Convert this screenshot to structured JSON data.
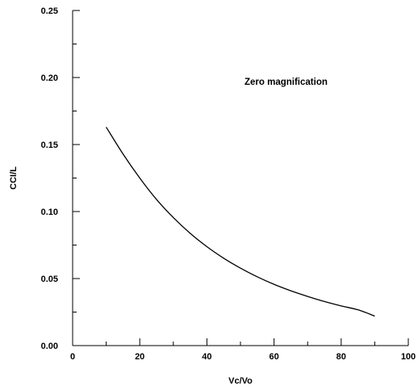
{
  "chart_data": {
    "type": "line",
    "xlabel": "Vc/Vo",
    "ylabel": "CCI/L",
    "annotation": "Zero magnification",
    "xlim": [
      0,
      100
    ],
    "ylim": [
      0,
      0.25
    ],
    "x_ticks": [
      {
        "value": 0,
        "label": "0"
      },
      {
        "value": 20,
        "label": "20"
      },
      {
        "value": 40,
        "label": "40"
      },
      {
        "value": 60,
        "label": "60"
      },
      {
        "value": 80,
        "label": "80"
      },
      {
        "value": 100,
        "label": "100"
      }
    ],
    "y_ticks": [
      {
        "value": 0,
        "label": "0.00"
      },
      {
        "value": 0.05,
        "label": "0.05"
      },
      {
        "value": 0.1,
        "label": "0.10"
      },
      {
        "value": 0.15,
        "label": "0.15"
      },
      {
        "value": 0.2,
        "label": "0.20"
      },
      {
        "value": 0.25,
        "label": "0.25"
      }
    ],
    "x_minor_step": 10,
    "y_minor_step": 0.025,
    "grid": false,
    "legend": "none",
    "line_color": "#000000",
    "series": [
      {
        "x": [
          10,
          15,
          20,
          25,
          30,
          35,
          40,
          45,
          50,
          55,
          60,
          65,
          70,
          75,
          80,
          85,
          90
        ],
        "y": [
          0.163,
          0.143,
          0.125,
          0.109,
          0.0955,
          0.0838,
          0.0738,
          0.0652,
          0.0578,
          0.0513,
          0.0457,
          0.0409,
          0.0367,
          0.0329,
          0.0296,
          0.0267,
          0.022
        ]
      }
    ]
  }
}
